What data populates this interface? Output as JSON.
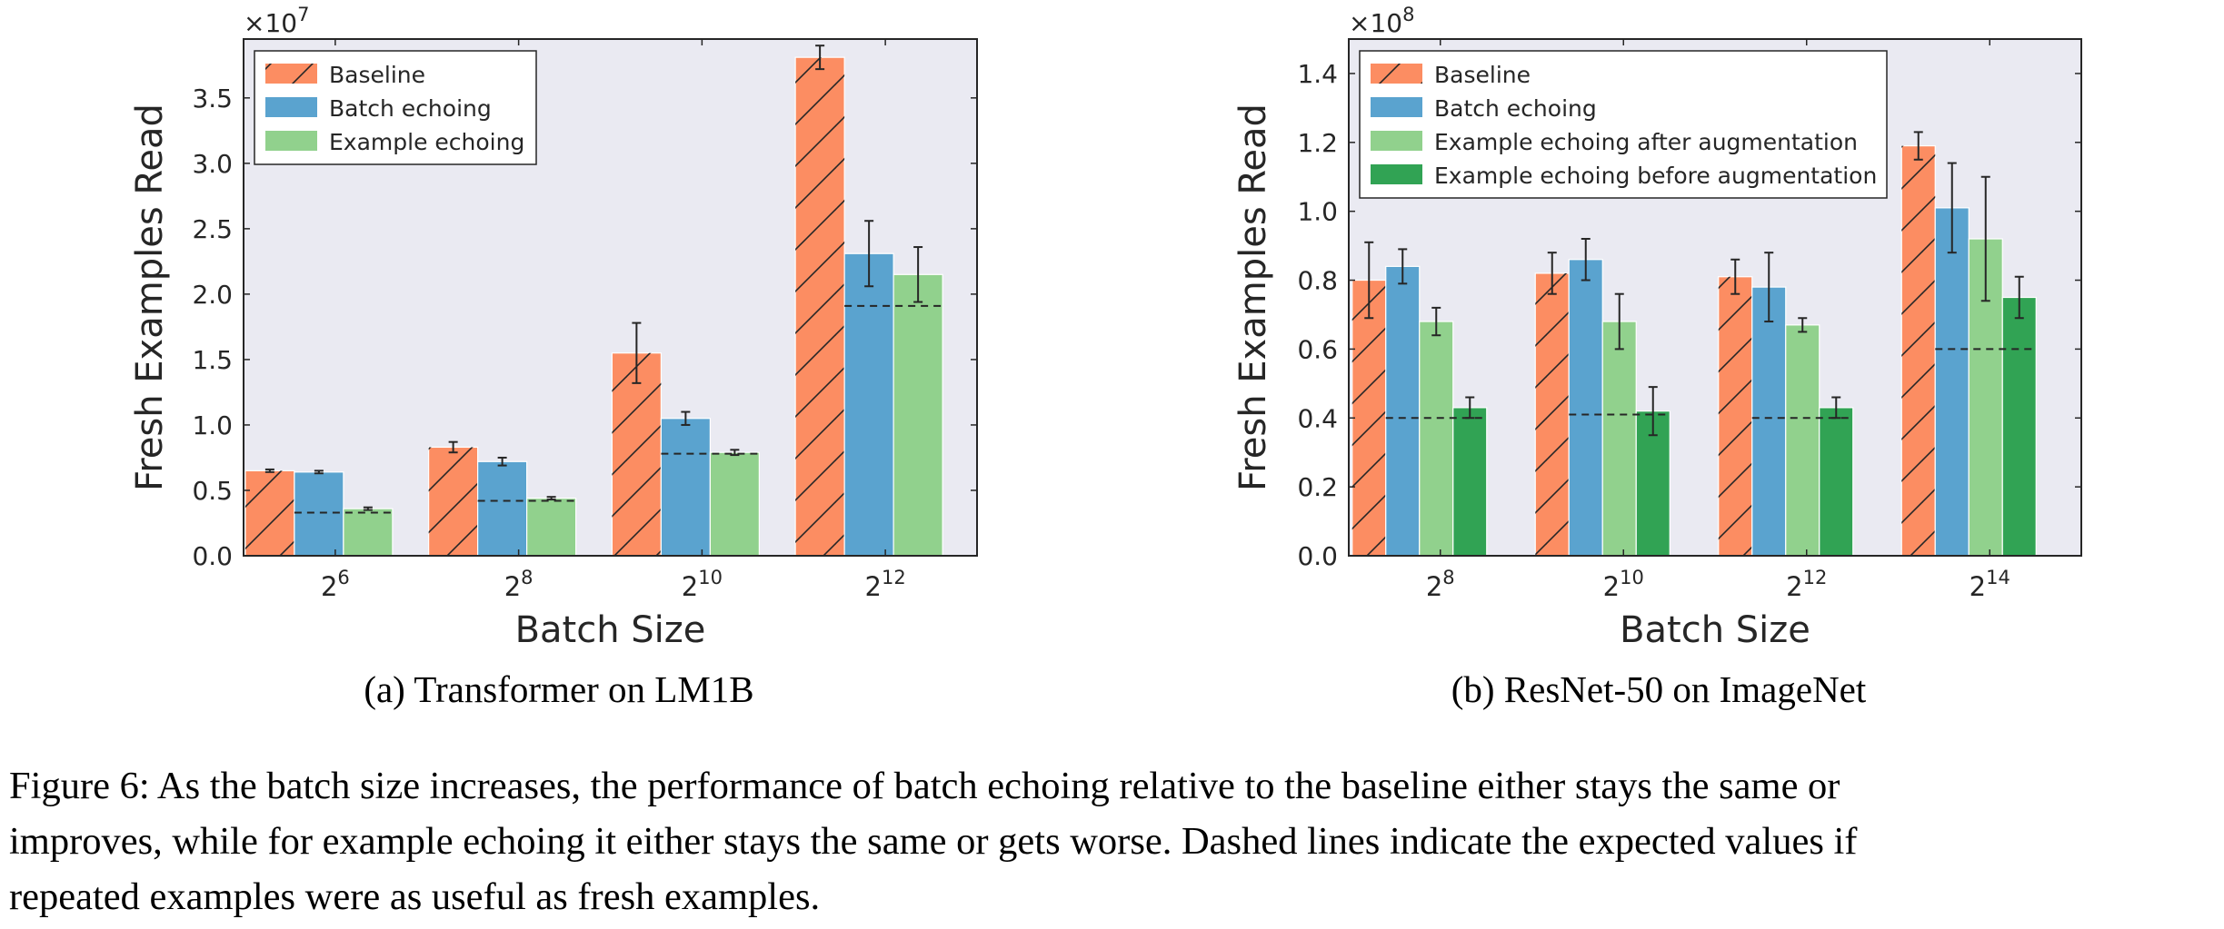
{
  "chart_data": [
    {
      "type": "bar",
      "axis_multiplier": "×10^7",
      "categories": [
        "2^6",
        "2^8",
        "2^10",
        "2^12"
      ],
      "xlabel": "Batch Size",
      "ylabel": "Fresh Examples Read",
      "ylim": [
        0,
        3.95
      ],
      "yticks": [
        "0.0",
        "0.5",
        "1.0",
        "1.5",
        "2.0",
        "2.5",
        "3.0",
        "3.5"
      ],
      "legend_position": "top-left",
      "grid": false,
      "series": [
        {
          "name": "Baseline",
          "color": "#fc8d62",
          "hatch": true,
          "values": [
            0.65,
            0.83,
            1.55,
            3.81
          ],
          "err": [
            0.01,
            0.04,
            0.23,
            0.09
          ]
        },
        {
          "name": "Batch echoing",
          "color": "#5aa3cf",
          "values": [
            0.64,
            0.72,
            1.05,
            2.31
          ],
          "err": [
            0.01,
            0.03,
            0.05,
            0.25
          ]
        },
        {
          "name": "Example echoing",
          "color": "#91d18d",
          "values": [
            0.36,
            0.44,
            0.79,
            2.15
          ],
          "err": [
            0.01,
            0.01,
            0.02,
            0.21
          ]
        }
      ],
      "expected_dashed": [
        0.33,
        0.42,
        0.78,
        1.91
      ],
      "subcaption": "(a) Transformer on LM1B"
    },
    {
      "type": "bar",
      "axis_multiplier": "×10^8",
      "categories": [
        "2^8",
        "2^10",
        "2^12",
        "2^14"
      ],
      "xlabel": "Batch Size",
      "ylabel": "Fresh Examples Read",
      "ylim": [
        0,
        1.5
      ],
      "yticks": [
        "0.0",
        "0.2",
        "0.4",
        "0.6",
        "0.8",
        "1.0",
        "1.2",
        "1.4"
      ],
      "legend_position": "top-left",
      "grid": false,
      "series": [
        {
          "name": "Baseline",
          "color": "#fc8d62",
          "hatch": true,
          "values": [
            0.8,
            0.82,
            0.81,
            1.19
          ],
          "err": [
            0.11,
            0.06,
            0.05,
            0.04
          ]
        },
        {
          "name": "Batch echoing",
          "color": "#5aa3cf",
          "values": [
            0.84,
            0.86,
            0.78,
            1.01
          ],
          "err": [
            0.05,
            0.06,
            0.1,
            0.13
          ]
        },
        {
          "name": "Example echoing after augmentation",
          "color": "#91d18d",
          "values": [
            0.68,
            0.68,
            0.67,
            0.92
          ],
          "err": [
            0.04,
            0.08,
            0.02,
            0.18
          ]
        },
        {
          "name": "Example echoing before augmentation",
          "color": "#31a354",
          "values": [
            0.43,
            0.42,
            0.43,
            0.75
          ],
          "err": [
            0.03,
            0.07,
            0.03,
            0.06
          ]
        }
      ],
      "expected_dashed": [
        0.4,
        0.41,
        0.4,
        0.6
      ],
      "subcaption": "(b) ResNet-50 on ImageNet"
    }
  ],
  "figure_caption": "Figure 6: As the batch size increases, the performance of batch echoing relative to the baseline either stays the same or improves, while for example echoing it either stays the same or gets worse. Dashed lines indicate the expected values if repeated examples were as useful as fresh examples.",
  "figure_caption_lines": [
    "Figure 6: As the batch size increases, the performance of batch echoing relative to the baseline either stays the same or",
    "improves, while for example echoing it either stays the same or gets worse. Dashed lines indicate the expected values if",
    "repeated examples were as useful as fresh examples."
  ]
}
